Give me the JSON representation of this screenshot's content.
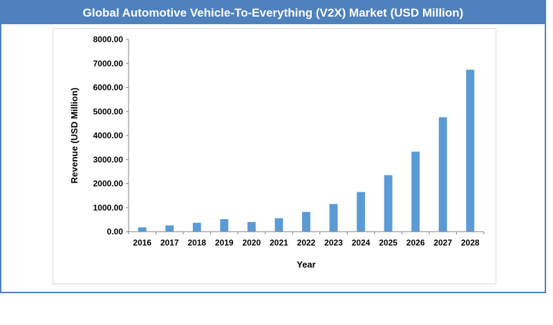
{
  "header": {
    "title": "Global Automotive Vehicle-To-Everything (V2X) Market (USD Million)"
  },
  "colors": {
    "title_bar": "#4f81bd",
    "bar": "#5b9bd5",
    "axis": "#808080"
  },
  "chart_data": {
    "type": "bar",
    "categories": [
      "2016",
      "2017",
      "2018",
      "2019",
      "2020",
      "2021",
      "2022",
      "2023",
      "2024",
      "2025",
      "2026",
      "2027",
      "2028"
    ],
    "values": [
      180,
      260,
      370,
      520,
      400,
      560,
      820,
      1150,
      1650,
      2350,
      3330,
      4760,
      6740
    ],
    "xlabel": "Year",
    "ylabel": "Revenue (USD Million)",
    "ylim": [
      0,
      8000
    ],
    "yticks": [
      "0.00",
      "1000.00",
      "2000.00",
      "3000.00",
      "4000.00",
      "5000.00",
      "6000.00",
      "7000.00",
      "8000.00"
    ],
    "grid": false,
    "legend": "none"
  }
}
